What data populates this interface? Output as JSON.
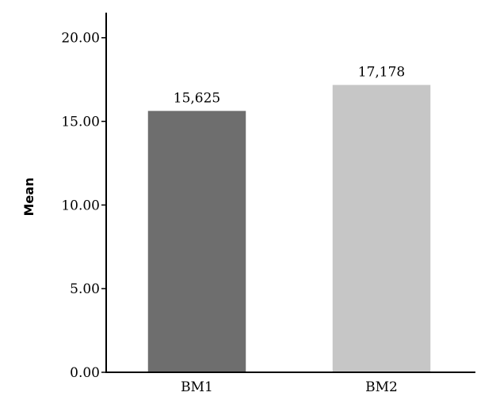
{
  "chart_data": {
    "type": "bar",
    "title": "",
    "xlabel": "",
    "ylabel": "Mean",
    "categories": [
      "BM1",
      "BM2"
    ],
    "values": [
      15.625,
      17.178
    ],
    "data_labels": [
      "15,625",
      "17,178"
    ],
    "bar_colors": [
      "#6e6e6e",
      "#c6c6c6"
    ],
    "ylim": [
      0,
      21.5
    ],
    "yticks": [
      0,
      5,
      10,
      15,
      20
    ],
    "ytick_labels": [
      "0.00",
      "5.00",
      "10.00",
      "15.00",
      "20.00"
    ],
    "grid": false,
    "legend": "none"
  }
}
